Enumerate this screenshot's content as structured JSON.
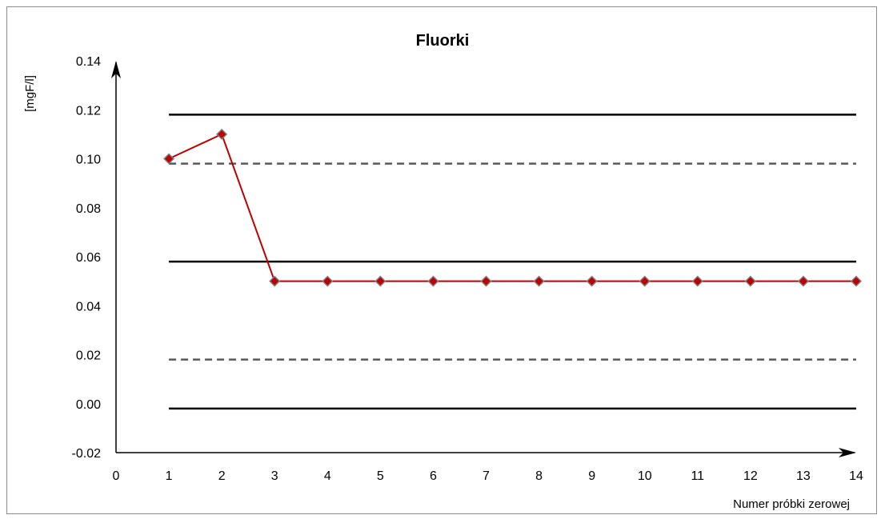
{
  "chart_data": {
    "type": "line",
    "title": "Fluorki",
    "xlabel": "Numer próbki zerowej",
    "ylabel": "[mgF/l]",
    "xlim": [
      0,
      14
    ],
    "ylim": [
      -0.02,
      0.14
    ],
    "x_ticks": [
      "0",
      "1",
      "2",
      "3",
      "4",
      "5",
      "6",
      "7",
      "8",
      "9",
      "10",
      "11",
      "12",
      "13",
      "14"
    ],
    "y_ticks": [
      "-0.02",
      "0.00",
      "0.02",
      "0.04",
      "0.06",
      "0.08",
      "0.10",
      "0.12",
      "0.14"
    ],
    "grid": false,
    "series": [
      {
        "x": [
          1,
          2,
          3,
          4,
          5,
          6,
          7,
          8,
          9,
          10,
          11,
          12,
          13,
          14
        ],
        "values": [
          0.1,
          0.11,
          0.05,
          0.05,
          0.05,
          0.05,
          0.05,
          0.05,
          0.05,
          0.05,
          0.05,
          0.05,
          0.05,
          0.05
        ],
        "color": "#c00000",
        "marker": "diamond",
        "marker_color": "#c00000"
      }
    ],
    "reference_lines": [
      {
        "y": 0.118,
        "style": "solid",
        "color": "#000000"
      },
      {
        "y": 0.098,
        "style": "dashed",
        "color": "#595959"
      },
      {
        "y": 0.058,
        "style": "solid",
        "color": "#000000"
      },
      {
        "y": 0.018,
        "style": "dashed",
        "color": "#595959"
      },
      {
        "y": -0.002,
        "style": "solid",
        "color": "#000000"
      }
    ]
  }
}
